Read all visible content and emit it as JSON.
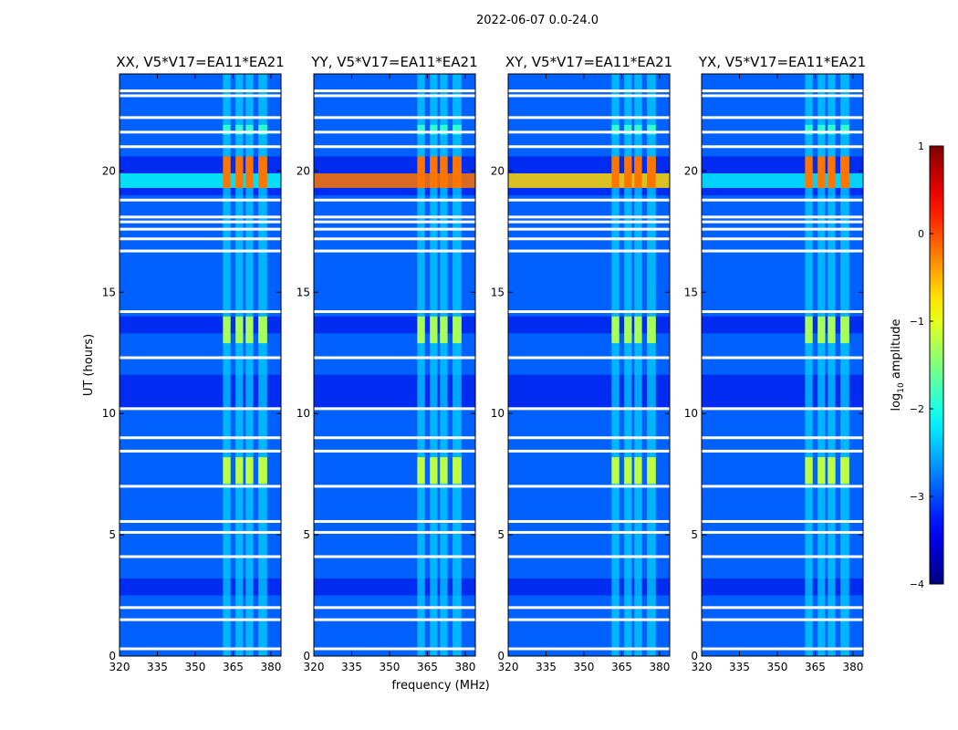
{
  "chart_data": {
    "type": "heatmap",
    "title": "2022-06-07 0.0-24.0",
    "xlabel": "frequency (MHz)",
    "ylabel": "UT (hours)",
    "xlim": [
      320,
      384
    ],
    "ylim": [
      0,
      24
    ],
    "x_ticks": [
      320,
      335,
      350,
      365,
      380
    ],
    "y_ticks": [
      0,
      5,
      10,
      15,
      20
    ],
    "panels": [
      {
        "name": "xx",
        "title": "XX, V5*V17=EA11*EA21"
      },
      {
        "name": "yy",
        "title": "YY, V5*V17=EA11*EA21"
      },
      {
        "name": "xy",
        "title": "XY, V5*V17=EA11*EA21"
      },
      {
        "name": "yx",
        "title": "YX, V5*V17=EA11*EA21"
      }
    ],
    "colorbar": {
      "label": "log10 amplitude",
      "label_main": "log",
      "label_sub": "10",
      "label_rest": " amplitude",
      "colormap": "jet",
      "range": [
        -4,
        1
      ],
      "ticks": [
        {
          "value": 1,
          "text": "1"
        },
        {
          "value": 0,
          "text": "0"
        },
        {
          "value": -1,
          "text": "−1"
        },
        {
          "value": -2,
          "text": "−2"
        },
        {
          "value": -3,
          "text": "−3"
        },
        {
          "value": -4,
          "text": "−4"
        }
      ]
    },
    "background_level": -2.9,
    "rfi_channels_mhz": [
      [
        361,
        364
      ],
      [
        366,
        369
      ],
      [
        370,
        373
      ],
      [
        375,
        378.5
      ]
    ],
    "flagged_hours": [
      0.3,
      1.5,
      2.0,
      4.1,
      5.1,
      5.55,
      7.0,
      8.45,
      9.0,
      10.2,
      12.3,
      14.2,
      16.7,
      17.2,
      17.6,
      17.9,
      18.1,
      18.8,
      21.0,
      21.6,
      22.2,
      23.1,
      23.3
    ],
    "dark_bands_hours": [
      [
        2.5,
        3.2
      ],
      [
        10.2,
        11.6
      ],
      [
        13.3,
        14.0
      ],
      [
        19.0,
        20.6
      ]
    ],
    "rfi_blocks": [
      {
        "t0": 19.3,
        "t1": 20.6,
        "level": -0.2
      },
      {
        "t0": 12.9,
        "t1": 14.0,
        "level": -1.3
      },
      {
        "t0": 7.1,
        "t1": 8.2,
        "level": -1.2
      },
      {
        "t0": 21.5,
        "t1": 21.9,
        "level": -1.9
      }
    ],
    "broadband_burst": {
      "t0": 19.3,
      "t1": 19.9,
      "level_by_panel": [
        -2.1,
        -0.2,
        -0.7,
        -2.2
      ]
    }
  }
}
